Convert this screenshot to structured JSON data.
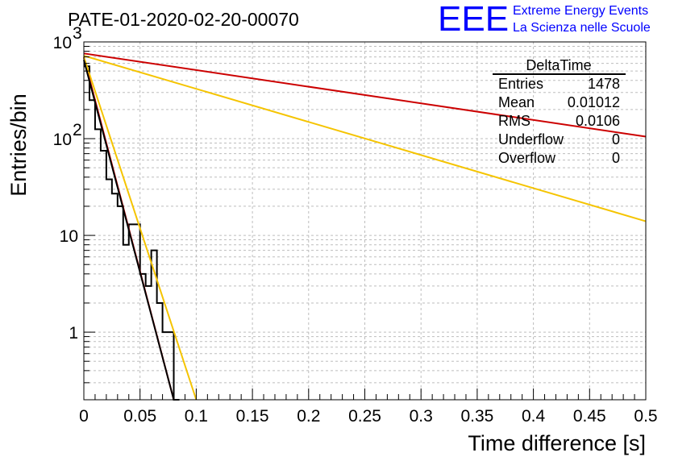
{
  "title": "PATE-01-2020-02-20-00070",
  "logo": {
    "mark": "EEE",
    "line1": "Extreme Energy Events",
    "line2": "La Scienza nelle Scuole",
    "color": "#0000ff"
  },
  "stats": {
    "name": "DeltaTime",
    "rows": [
      {
        "label": "Entries",
        "value": "1478"
      },
      {
        "label": "Mean",
        "value": "0.01012"
      },
      {
        "label": "RMS",
        "value": "0.0106"
      },
      {
        "label": "Underflow",
        "value": "0"
      },
      {
        "label": "Overflow",
        "value": "0"
      }
    ]
  },
  "chart_data": {
    "type": "line",
    "xlabel": "Time difference [s]",
    "ylabel": "Entries/bin",
    "xlim": [
      0,
      0.5
    ],
    "ylim": [
      0.2,
      1000
    ],
    "yscale": "log",
    "grid": true,
    "x_ticks": [
      {
        "value": 0,
        "label": "0"
      },
      {
        "value": 0.05,
        "label": "0.05"
      },
      {
        "value": 0.1,
        "label": "0.1"
      },
      {
        "value": 0.15,
        "label": "0.15"
      },
      {
        "value": 0.2,
        "label": "0.2"
      },
      {
        "value": 0.25,
        "label": "0.25"
      },
      {
        "value": 0.3,
        "label": "0.3"
      },
      {
        "value": 0.35,
        "label": "0.35"
      },
      {
        "value": 0.4,
        "label": "0.4"
      },
      {
        "value": 0.45,
        "label": "0.45"
      },
      {
        "value": 0.5,
        "label": "0.5"
      }
    ],
    "y_ticks": [
      {
        "value": 1,
        "label": "1"
      },
      {
        "value": 10,
        "label": "10"
      },
      {
        "value": 100,
        "label": "10",
        "exp": "2"
      },
      {
        "value": 1000,
        "label": "10",
        "exp": "3"
      }
    ],
    "histogram": {
      "bin_width": 0.005,
      "color": "#000000",
      "values": [
        560,
        250,
        125,
        75,
        38,
        27,
        20,
        8,
        13,
        13,
        4,
        3,
        7,
        2,
        1,
        1,
        0
      ]
    },
    "fits": [
      {
        "color": "#cc0000",
        "x": [
          0,
          0.08
        ],
        "y": [
          690,
          0.2
        ]
      },
      {
        "color": "#cc0000",
        "x": [
          0,
          0.5
        ],
        "y": [
          760,
          105
        ]
      },
      {
        "color": "#f5c400",
        "x": [
          0,
          0.1
        ],
        "y": [
          700,
          0.2
        ]
      },
      {
        "color": "#f5c400",
        "x": [
          0,
          0.5
        ],
        "y": [
          720,
          14
        ]
      },
      {
        "color": "#000000",
        "x": [
          0,
          0.08
        ],
        "y": [
          650,
          0.2
        ]
      }
    ]
  }
}
